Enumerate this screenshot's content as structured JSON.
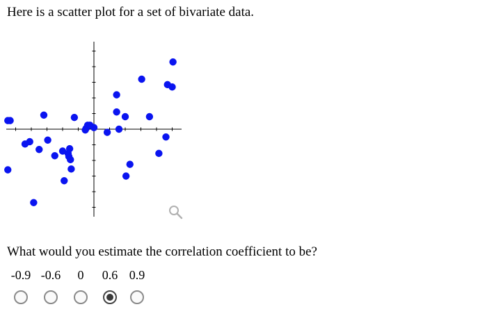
{
  "prompt": {
    "intro": "Here is a scatter plot for a set of bivariate data.",
    "question": "What would you estimate the correlation coefficient to be?"
  },
  "colors": {
    "points": "#0a14f0",
    "axis": "#000000",
    "radio_selected": "#3a3a3a"
  },
  "icons": {
    "zoom": "zoom-icon"
  },
  "choices": [
    {
      "label": "-0.9",
      "selected": false
    },
    {
      "label": "-0.6",
      "selected": false
    },
    {
      "label": "0",
      "selected": false
    },
    {
      "label": "0.6",
      "selected": true
    },
    {
      "label": "0.9",
      "selected": false
    }
  ],
  "chart_data": {
    "type": "scatter",
    "xlim": [
      -5.6,
      5.6
    ],
    "ylim": [
      -5.6,
      5.6
    ],
    "grid": false,
    "points": [
      [
        -5.5,
        0.55
      ],
      [
        -5.35,
        0.55
      ],
      [
        -5.5,
        -2.6
      ],
      [
        -3.2,
        0.9
      ],
      [
        -4.4,
        -0.95
      ],
      [
        -4.1,
        -0.8
      ],
      [
        -3.5,
        -1.3
      ],
      [
        -2.95,
        -0.7
      ],
      [
        -3.85,
        -4.7
      ],
      [
        -2.5,
        -1.7
      ],
      [
        -2.0,
        -1.4
      ],
      [
        -1.65,
        -1.55
      ],
      [
        -1.6,
        -1.75
      ],
      [
        -1.5,
        -1.95
      ],
      [
        -1.55,
        -1.25
      ],
      [
        -1.45,
        -2.55
      ],
      [
        -1.9,
        -3.3
      ],
      [
        -1.25,
        0.75
      ],
      [
        -0.55,
        -0.05
      ],
      [
        -0.5,
        0.05
      ],
      [
        -0.4,
        0.25
      ],
      [
        -0.25,
        0.25
      ],
      [
        0.0,
        0.1
      ],
      [
        0.85,
        -0.2
      ],
      [
        1.6,
        0.0
      ],
      [
        1.45,
        2.2
      ],
      [
        1.45,
        1.1
      ],
      [
        2.0,
        0.8
      ],
      [
        2.3,
        -2.25
      ],
      [
        2.05,
        -3.0
      ],
      [
        3.05,
        3.2
      ],
      [
        3.55,
        0.8
      ],
      [
        4.15,
        -1.55
      ],
      [
        4.6,
        -0.5
      ],
      [
        4.7,
        2.85
      ],
      [
        5.0,
        2.7
      ],
      [
        5.05,
        4.3
      ]
    ]
  }
}
